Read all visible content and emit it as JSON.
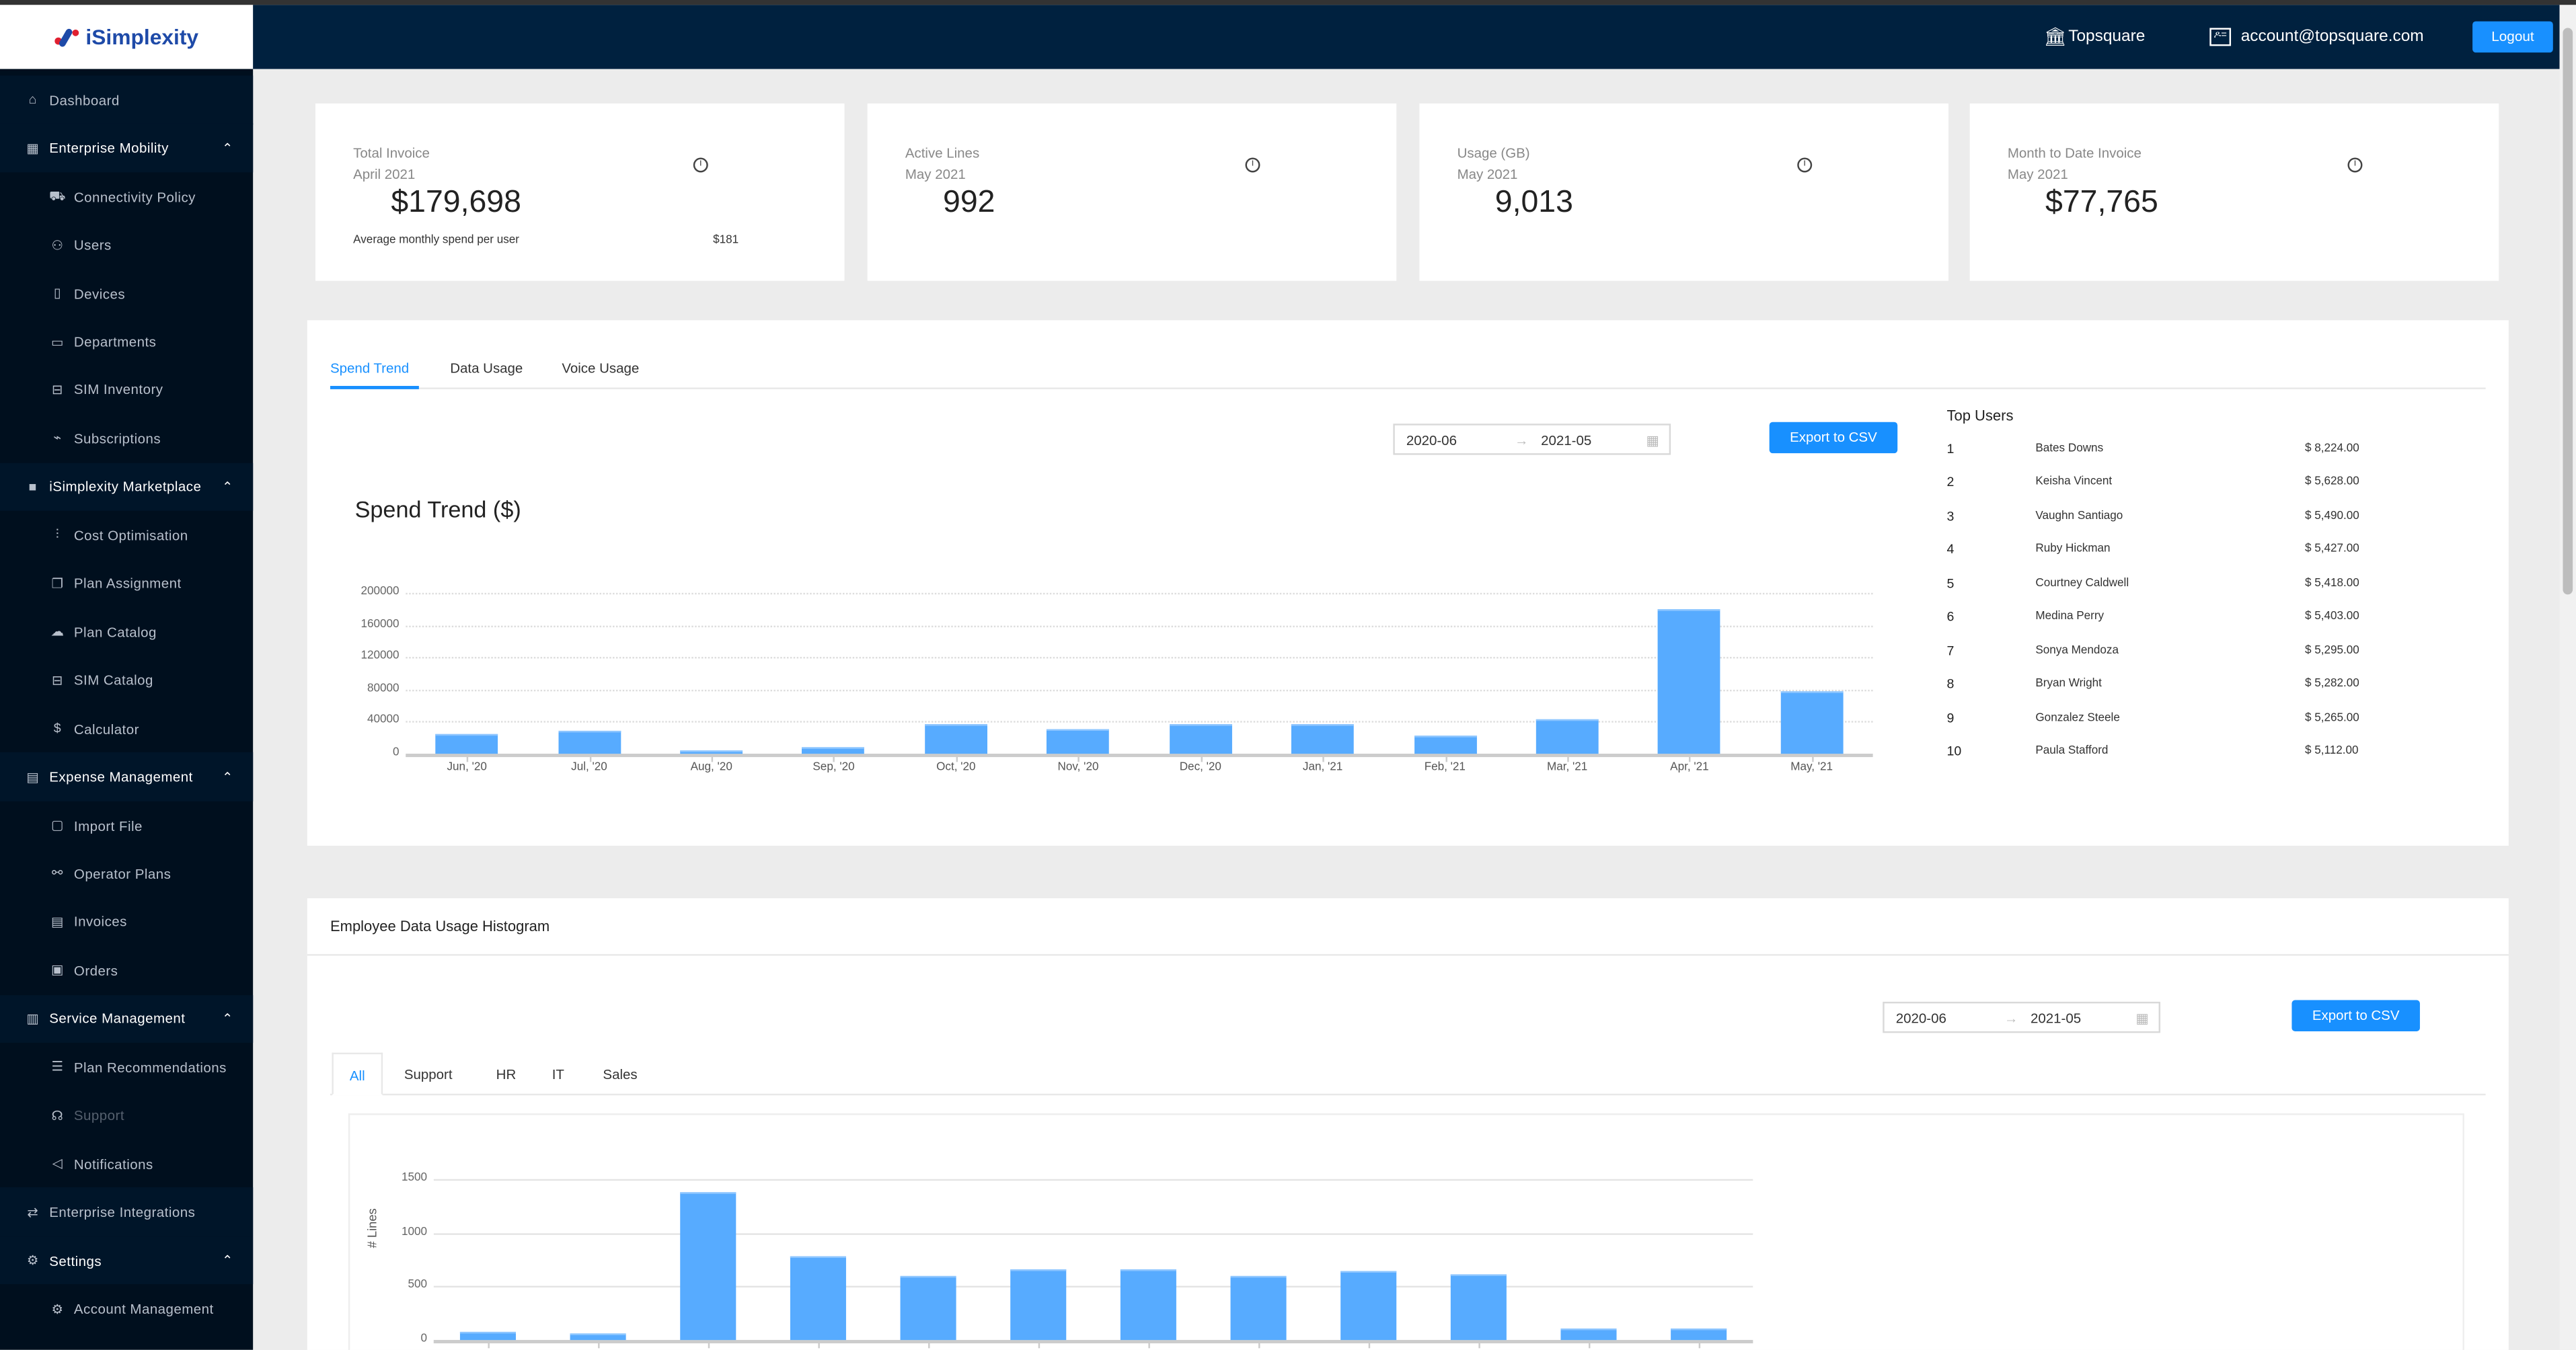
{
  "brand": {
    "name": "iSimplexity",
    "colors": {
      "accent": "#1890ff",
      "header": "#00213f",
      "sidebar": "#000f1e",
      "bar": "#57abff"
    }
  },
  "header": {
    "org_icon": "bank-icon",
    "org": "Topsquare",
    "account_icon": "id-card-icon",
    "account": "account@topsquare.com",
    "logout": "Logout"
  },
  "sidebar": {
    "items": [
      {
        "label": "Dashboard",
        "icon": "home-icon",
        "type": "top"
      },
      {
        "label": "Enterprise Mobility",
        "icon": "grid-icon",
        "type": "parent",
        "expanded": true
      },
      {
        "label": "Connectivity Policy",
        "icon": "cart-icon",
        "type": "sub"
      },
      {
        "label": "Users",
        "icon": "users-icon",
        "type": "sub"
      },
      {
        "label": "Devices",
        "icon": "tablet-icon",
        "type": "sub"
      },
      {
        "label": "Departments",
        "icon": "id-card-icon",
        "type": "sub"
      },
      {
        "label": "SIM Inventory",
        "icon": "sim-icon",
        "type": "sub"
      },
      {
        "label": "Subscriptions",
        "icon": "plug-icon",
        "type": "sub"
      },
      {
        "label": "iSimplexity Marketplace",
        "icon": "appstore-icon",
        "type": "parent",
        "expanded": true
      },
      {
        "label": "Cost Optimisation",
        "icon": "sliders-icon",
        "type": "sub"
      },
      {
        "label": "Plan Assignment",
        "icon": "copy-icon",
        "type": "sub"
      },
      {
        "label": "Plan Catalog",
        "icon": "chat-icon",
        "type": "sub"
      },
      {
        "label": "SIM Catalog",
        "icon": "sim-icon",
        "type": "sub"
      },
      {
        "label": "Calculator",
        "icon": "dollar-icon",
        "type": "sub"
      },
      {
        "label": "Expense Management",
        "icon": "table-icon",
        "type": "parent",
        "expanded": true
      },
      {
        "label": "Import File",
        "icon": "file-icon",
        "type": "sub"
      },
      {
        "label": "Operator Plans",
        "icon": "link-icon",
        "type": "sub"
      },
      {
        "label": "Invoices",
        "icon": "file-text-icon",
        "type": "sub"
      },
      {
        "label": "Orders",
        "icon": "box-icon",
        "type": "sub"
      },
      {
        "label": "Service Management",
        "icon": "layout-icon",
        "type": "parent",
        "expanded": true
      },
      {
        "label": "Plan Recommendations",
        "icon": "list-icon",
        "type": "sub"
      },
      {
        "label": "Support",
        "icon": "headset-icon",
        "type": "sub",
        "disabled": true
      },
      {
        "label": "Notifications",
        "icon": "bell-icon",
        "type": "sub"
      },
      {
        "label": "Enterprise Integrations",
        "icon": "api-icon",
        "type": "top"
      },
      {
        "label": "Settings",
        "icon": "gear-icon",
        "type": "parent",
        "expanded": true
      },
      {
        "label": "Account Management",
        "icon": "gear-icon",
        "type": "sub"
      }
    ]
  },
  "cards": [
    {
      "title": "Total Invoice",
      "period": "April 2021",
      "value": "$179,698",
      "footer_label": "Average monthly spend per user",
      "footer_value": "$181"
    },
    {
      "title": "Active Lines",
      "period": "May 2021",
      "value": "992"
    },
    {
      "title": "Usage (GB)",
      "period": "May 2021",
      "value": "9,013"
    },
    {
      "title": "Month to Date Invoice",
      "period": "May 2021",
      "value": "$77,765"
    }
  ],
  "spend": {
    "tabs": [
      "Spend Trend",
      "Data Usage",
      "Voice Usage"
    ],
    "active_tab": 0,
    "date_from": "2020-06",
    "date_to": "2021-05",
    "arrow": "→",
    "export": "Export to CSV",
    "top_users_title": "Top Users",
    "top_users": [
      {
        "rank": "1",
        "name": "Bates Downs",
        "amount": "$ 8,224.00"
      },
      {
        "rank": "2",
        "name": "Keisha Vincent",
        "amount": "$ 5,628.00"
      },
      {
        "rank": "3",
        "name": "Vaughn Santiago",
        "amount": "$ 5,490.00"
      },
      {
        "rank": "4",
        "name": "Ruby Hickman",
        "amount": "$ 5,427.00"
      },
      {
        "rank": "5",
        "name": "Courtney Caldwell",
        "amount": "$ 5,418.00"
      },
      {
        "rank": "6",
        "name": "Medina Perry",
        "amount": "$ 5,403.00"
      },
      {
        "rank": "7",
        "name": "Sonya Mendoza",
        "amount": "$ 5,295.00"
      },
      {
        "rank": "8",
        "name": "Bryan Wright",
        "amount": "$ 5,282.00"
      },
      {
        "rank": "9",
        "name": "Gonzalez Steele",
        "amount": "$ 5,265.00"
      },
      {
        "rank": "10",
        "name": "Paula Stafford",
        "amount": "$ 5,112.00"
      }
    ]
  },
  "histogram": {
    "title": "Employee Data Usage Histogram",
    "date_from": "2020-06",
    "date_to": "2021-05",
    "arrow": "→",
    "export": "Export to CSV",
    "tabs": [
      "All",
      "Support",
      "HR",
      "IT",
      "Sales"
    ],
    "active_tab": 0
  },
  "chart_data": [
    {
      "type": "bar",
      "title": "Spend Trend ($)",
      "xlabel": "",
      "ylabel": "",
      "categories": [
        "Jun, '20",
        "Jul, '20",
        "Aug, '20",
        "Sep, '20",
        "Oct, '20",
        "Nov, '20",
        "Dec, '20",
        "Jan, '21",
        "Feb, '21",
        "Mar, '21",
        "Apr, '21",
        "May, '21"
      ],
      "values": [
        24200,
        29300,
        4800,
        8200,
        36900,
        31000,
        36900,
        37700,
        22800,
        42300,
        179698,
        77765
      ],
      "ylim": [
        0,
        200000
      ],
      "yticks": [
        "0",
        "40000",
        "80000",
        "120000",
        "160000",
        "200000"
      ],
      "grid": true
    },
    {
      "type": "bar",
      "title": "",
      "xlabel": "",
      "ylabel": "# Lines",
      "values": [
        73,
        67,
        1377,
        775,
        594,
        654,
        665,
        602,
        648,
        610,
        102,
        100
      ],
      "ylim": [
        0,
        1500
      ],
      "yticks": [
        "0",
        "500",
        "1000",
        "1500"
      ],
      "grid": true
    }
  ]
}
